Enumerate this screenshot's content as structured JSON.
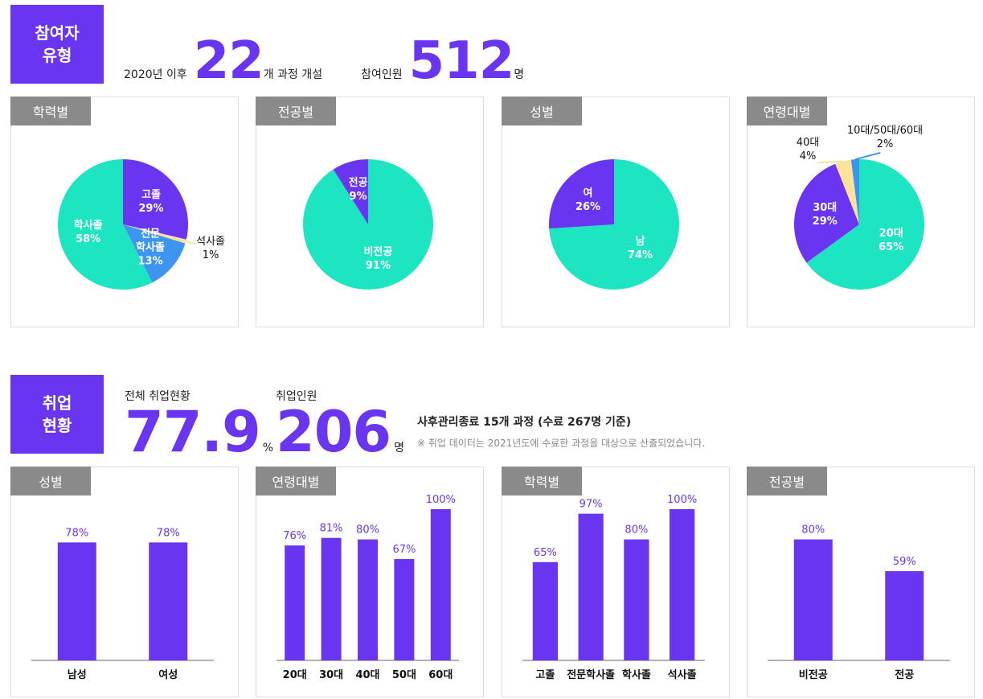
{
  "participation": {
    "badge": "참여자\n유형",
    "since": "2020년 이후",
    "courses": 22,
    "courses_unit": "개 과정 개설",
    "people_label": "참여인원",
    "people": 512,
    "people_unit": "명"
  },
  "employment": {
    "badge": "취업\n현황",
    "rate_label": "전체 취업현황",
    "rate": 77.9,
    "rate_unit": "%",
    "employed_label": "취업인원",
    "employed": 206,
    "employed_unit": "명",
    "summary": "사후관리종료 15개 과정 (수료 267명 기준)",
    "note": "※ 취업 데이터는 2021년도에 수료한 과정을 대상으로 산출되었습니다."
  },
  "chart_data": [
    {
      "type": "pie",
      "title": "학력별",
      "categories": [
        "고졸",
        "석사졸",
        "전문\n학사졸",
        "학사졸"
      ],
      "values": [
        29,
        1,
        13,
        58
      ],
      "value_labels": [
        "29%",
        "1%",
        "13%",
        "58%"
      ],
      "colors": [
        "#6a35f0",
        "#fde29a",
        "#3d95f0",
        "#1de5c2"
      ]
    },
    {
      "type": "pie",
      "title": "전공별",
      "categories": [
        "비전공",
        "전공"
      ],
      "values": [
        91,
        9
      ],
      "value_labels": [
        "91%",
        "9%"
      ],
      "colors": [
        "#1de5c2",
        "#6a35f0"
      ]
    },
    {
      "type": "pie",
      "title": "성별",
      "categories": [
        "남",
        "여"
      ],
      "values": [
        74,
        26
      ],
      "value_labels": [
        "74%",
        "26%"
      ],
      "colors": [
        "#1de5c2",
        "#6a35f0"
      ]
    },
    {
      "type": "pie",
      "title": "연령대별",
      "categories": [
        "20대",
        "30대",
        "40대",
        "10대/50대/60대"
      ],
      "values": [
        65,
        29,
        4,
        2
      ],
      "value_labels": [
        "65%",
        "29%",
        "4%",
        "2%"
      ],
      "colors": [
        "#1de5c2",
        "#6a35f0",
        "#fde29a",
        "#3d95f0"
      ]
    },
    {
      "type": "bar",
      "title": "성별",
      "categories": [
        "남성",
        "여성"
      ],
      "values": [
        78,
        78
      ],
      "value_labels": [
        "78%",
        "78%"
      ],
      "color": "#6a35f0"
    },
    {
      "type": "bar",
      "title": "연령대별",
      "categories": [
        "20대",
        "30대",
        "40대",
        "50대",
        "60대"
      ],
      "values": [
        76,
        81,
        80,
        67,
        100
      ],
      "value_labels": [
        "76%",
        "81%",
        "80%",
        "67%",
        "100%"
      ],
      "color": "#6a35f0"
    },
    {
      "type": "bar",
      "title": "학력별",
      "categories": [
        "고졸",
        "전문학사졸",
        "학사졸",
        "석사졸"
      ],
      "values": [
        65,
        97,
        80,
        100
      ],
      "value_labels": [
        "65%",
        "97%",
        "80%",
        "100%"
      ],
      "color": "#6a35f0"
    },
    {
      "type": "bar",
      "title": "전공별",
      "categories": [
        "비전공",
        "전공"
      ],
      "values": [
        80,
        59
      ],
      "value_labels": [
        "80%",
        "59%"
      ],
      "color": "#6a35f0"
    }
  ]
}
